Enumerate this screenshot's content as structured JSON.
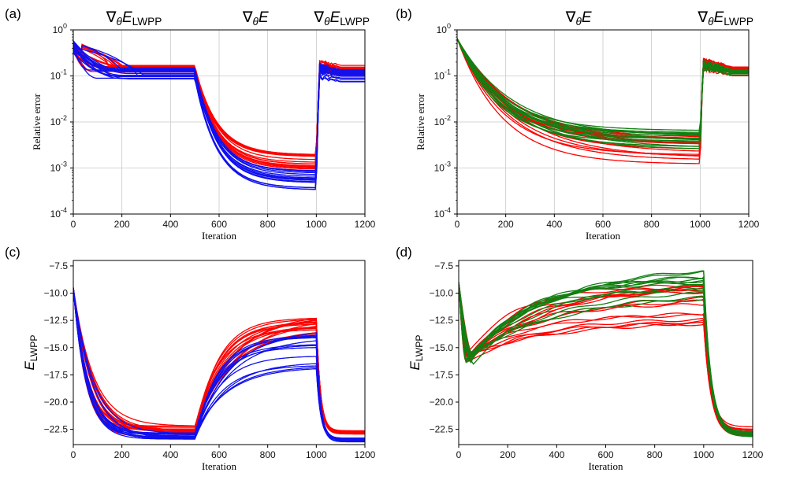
{
  "colors": {
    "red": "#ff0000",
    "blue": "#1010ee",
    "green": "#118011",
    "grid": "#c8c8c8"
  },
  "chart_data": [
    {
      "panel": "(a)",
      "type": "line",
      "phase_labels": [
        "∇θE_LWPP",
        "∇θE",
        "∇θE_LWPP"
      ],
      "xlabel": "Iteration",
      "ylabel": "Relative error",
      "xlim": [
        0,
        1200
      ],
      "ylim": [
        0.0001,
        1
      ],
      "yscale": "log",
      "xticks": [
        "0",
        "200",
        "400",
        "600",
        "800",
        "1000",
        "1200"
      ],
      "yticks": [
        "10^-4",
        "10^-3",
        "10^-2",
        "10^-1",
        "10^0"
      ],
      "grid": true,
      "series": [
        {
          "color": "red",
          "count": 18,
          "start": [
            0.3,
            0.6
          ],
          "phase1_end": [
            0.12,
            0.17
          ],
          "phase2_end": [
            0.0008,
            0.002
          ],
          "phase3_end": [
            0.1,
            0.17
          ]
        },
        {
          "color": "blue",
          "count": 18,
          "start": [
            0.3,
            0.6
          ],
          "phase1_end": [
            0.085,
            0.16
          ],
          "phase2_end": [
            0.0003,
            0.0009
          ],
          "phase3_end": [
            0.07,
            0.14
          ]
        }
      ]
    },
    {
      "panel": "(b)",
      "type": "line",
      "phase_labels": [
        "∇θE",
        "∇θE_LWPP"
      ],
      "xlabel": "Iteration",
      "ylabel": "Relative error",
      "xlim": [
        0,
        1200
      ],
      "ylim": [
        0.0001,
        1
      ],
      "yscale": "log",
      "xticks": [
        "0",
        "200",
        "400",
        "600",
        "800",
        "1000",
        "1200"
      ],
      "yticks": [
        "10^-4",
        "10^-3",
        "10^-2",
        "10^-1",
        "10^0"
      ],
      "grid": true,
      "series": [
        {
          "color": "red",
          "count": 18,
          "start": 0.65,
          "phase1_end": [
            0.0012,
            0.005
          ],
          "phase2_end": [
            0.1,
            0.16
          ]
        },
        {
          "color": "green",
          "count": 16,
          "start": 0.65,
          "phase1_end": [
            0.0025,
            0.007
          ],
          "phase2_end": [
            0.1,
            0.14
          ]
        }
      ]
    },
    {
      "panel": "(c)",
      "type": "line",
      "xlabel": "Iteration",
      "ylabel": "E_LWPP",
      "xlim": [
        0,
        1200
      ],
      "ylim": [
        -23.9,
        -7.0
      ],
      "xticks": [
        "0",
        "200",
        "400",
        "600",
        "800",
        "1000",
        "1200"
      ],
      "yticks": [
        "-7.5",
        "-10.0",
        "-12.5",
        "-15.0",
        "-17.5",
        "-20.0",
        "-22.5"
      ],
      "grid": false,
      "series": [
        {
          "color": "red",
          "count": 18,
          "start": -9.5,
          "phase1_end": [
            -23.4,
            -22.2
          ],
          "phase2_end": [
            -14.0,
            -12.3
          ],
          "phase3_end": [
            -23.0,
            -22.6
          ]
        },
        {
          "color": "blue",
          "count": 14,
          "start": -9.5,
          "phase1_end": [
            -23.6,
            -22.8
          ],
          "phase2_end": [
            -17.0,
            -13.5
          ],
          "phase3_end": [
            -23.7,
            -23.3
          ]
        }
      ]
    },
    {
      "panel": "(d)",
      "type": "line",
      "xlabel": "Iteration",
      "ylabel": "E_LWPP",
      "xlim": [
        0,
        1200
      ],
      "ylim": [
        -23.9,
        -7.0
      ],
      "xticks": [
        "0",
        "200",
        "400",
        "600",
        "800",
        "1000",
        "1200"
      ],
      "yticks": [
        "-7.5",
        "-10.0",
        "-12.5",
        "-15.0",
        "-17.5",
        "-20.0",
        "-22.5"
      ],
      "grid": false,
      "series": [
        {
          "color": "red",
          "count": 16,
          "start": -9.0,
          "phase1_end": [
            -12.9,
            -9.0
          ],
          "phase2_end": [
            -23.2,
            -22.2
          ]
        },
        {
          "color": "green",
          "count": 14,
          "start": -9.0,
          "phase1_end": [
            -10.9,
            -7.9
          ],
          "phase2_end": [
            -23.2,
            -22.6
          ]
        }
      ]
    }
  ]
}
